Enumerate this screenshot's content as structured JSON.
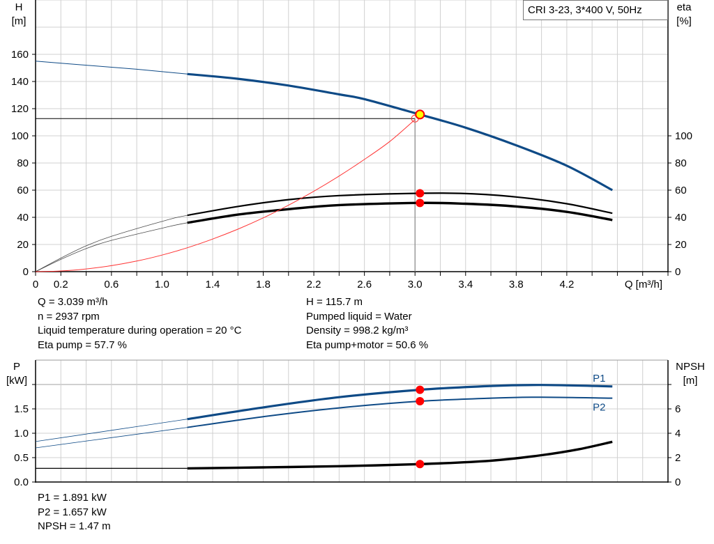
{
  "colors": {
    "head": "#0e4a86",
    "eta": "#000000",
    "system": "#ff3333",
    "point": "#ff0000",
    "duty_fill": "#ffff00",
    "grid": "#d0d0d0",
    "power": "#0e4a86",
    "npsh": "#000000"
  },
  "chart_data": [
    {
      "type": "line",
      "legend_box": "CRI 3-23, 3*400 V, 50Hz",
      "xlabel": "Q [m³/h]",
      "ylabel_left": [
        "H",
        "[m]"
      ],
      "ylabel_right": [
        "eta",
        "[%]"
      ],
      "xlim": [
        0,
        5.0
      ],
      "ylim_left": [
        0,
        200
      ],
      "ylim_right": [
        0,
        200
      ],
      "grid": true,
      "x_ticks": [
        0,
        0.2,
        0.4,
        0.6,
        0.8,
        1.0,
        1.2,
        1.4,
        1.6,
        1.8,
        2.0,
        2.2,
        2.4,
        2.6,
        2.8,
        3.0,
        3.2,
        3.4,
        3.6,
        3.8,
        4.0,
        4.2,
        4.4,
        4.6,
        4.8,
        5.0
      ],
      "x_tick_labels": [
        "0",
        "0.2",
        "0.6",
        "1.0",
        "1.4",
        "1.8",
        "2.2",
        "2.6",
        "3.0",
        "3.4",
        "3.8",
        "4.2"
      ],
      "x_tick_label_values": [
        0,
        0.2,
        0.6,
        1.0,
        1.4,
        1.8,
        2.2,
        2.6,
        3.0,
        3.4,
        3.8,
        4.2
      ],
      "y_left_ticks": [
        "0",
        "20",
        "40",
        "60",
        "80",
        "100",
        "120",
        "140",
        "160"
      ],
      "y_right_ticks": [
        "0",
        "20",
        "40",
        "60",
        "80",
        "100"
      ],
      "series": [
        {
          "key": "H",
          "axis": "left",
          "thick_from": 1.2,
          "x": [
            0,
            0.4,
            0.8,
            1.2,
            1.6,
            2.0,
            2.4,
            2.6,
            3.039,
            3.4,
            3.8,
            4.2,
            4.56
          ],
          "y": [
            155,
            152,
            149,
            145.5,
            142,
            137,
            130.5,
            127,
            115.7,
            106,
            93,
            78,
            60
          ]
        },
        {
          "key": "eta_pump",
          "axis": "right",
          "thick_from": 1.2,
          "x": [
            0,
            0.2,
            0.4,
            0.6,
            1.0,
            1.2,
            1.6,
            2.0,
            2.4,
            3.039,
            3.4,
            3.8,
            4.2,
            4.56
          ],
          "y": [
            0,
            10,
            19,
            26,
            37,
            41.5,
            48,
            53,
            56,
            57.7,
            57.5,
            55,
            50,
            43
          ]
        },
        {
          "key": "eta_pump_motor",
          "axis": "right",
          "thick_from": 1.2,
          "x": [
            0,
            0.2,
            0.4,
            0.6,
            1.0,
            1.2,
            1.6,
            2.0,
            2.4,
            3.039,
            3.4,
            3.8,
            4.2,
            4.56
          ],
          "y": [
            0,
            9,
            17,
            23,
            32,
            36,
            42,
            46,
            49,
            50.6,
            50,
            48,
            44,
            38
          ]
        },
        {
          "key": "system_curve",
          "axis": "left",
          "x": [
            0,
            0.2,
            0.4,
            0.6,
            0.8,
            1.0,
            1.2,
            1.4,
            1.6,
            1.8,
            2.0,
            2.2,
            2.4,
            2.6,
            2.8,
            3.0
          ],
          "y": [
            0,
            0.5,
            2,
            4.4,
            7.8,
            12.2,
            17.6,
            24,
            31.3,
            39.6,
            48.9,
            59.2,
            70.4,
            82.6,
            95.8,
            112
          ]
        }
      ],
      "duty_point": {
        "Q": 3.039,
        "H": 115.7
      },
      "system_point": {
        "Q": 3.0,
        "H": 112.7
      },
      "eta_points": [
        {
          "Q": 3.039,
          "eta": 57.7
        },
        {
          "Q": 3.039,
          "eta": 50.6
        }
      ]
    },
    {
      "type": "line",
      "ylabel_left": [
        "P",
        "[kW]"
      ],
      "ylabel_right": [
        "NPSH",
        "[m]"
      ],
      "xlim": [
        0,
        5.0
      ],
      "ylim_left": [
        0,
        2.5
      ],
      "ylim_right": [
        0,
        10
      ],
      "grid": true,
      "y_left_ticks": [
        "0.0",
        "0.5",
        "1.0",
        "1.5"
      ],
      "y_right_ticks": [
        "0",
        "2",
        "4",
        "6"
      ],
      "series": [
        {
          "key": "P1",
          "name": "P1",
          "axis": "left",
          "thick_from": 1.2,
          "x": [
            0,
            0.6,
            1.2,
            1.8,
            2.4,
            3.039,
            3.6,
            4.0,
            4.56
          ],
          "y": [
            0.83,
            1.06,
            1.29,
            1.53,
            1.74,
            1.891,
            1.97,
            1.99,
            1.96
          ]
        },
        {
          "key": "P2",
          "name": "P2",
          "axis": "left",
          "thick_from": 1.2,
          "x": [
            0,
            0.6,
            1.2,
            1.8,
            2.4,
            3.039,
            3.6,
            4.0,
            4.56
          ],
          "y": [
            0.7,
            0.91,
            1.12,
            1.34,
            1.52,
            1.657,
            1.72,
            1.74,
            1.72
          ]
        },
        {
          "key": "NPSH",
          "axis": "right",
          "thick_from": 1.2,
          "x": [
            1.2,
            1.8,
            2.4,
            3.039,
            3.6,
            4.0,
            4.3,
            4.56
          ],
          "y": [
            1.12,
            1.2,
            1.3,
            1.47,
            1.75,
            2.2,
            2.7,
            3.3
          ]
        }
      ],
      "npsh_required_line": {
        "Q_from": 0,
        "Q_to": 1.2,
        "NPSH": 1.12
      },
      "points": [
        {
          "key": "P1",
          "Q": 3.039,
          "value": 1.891
        },
        {
          "key": "P2",
          "Q": 3.039,
          "value": 1.657
        },
        {
          "key": "NPSH",
          "Q": 3.039,
          "value": 1.47
        }
      ]
    }
  ],
  "info_left": [
    "Q = 3.039 m³/h",
    "n = 2937 rpm",
    "Liquid temperature during operation = 20 °C",
    "Eta pump = 57.7 %"
  ],
  "info_right": [
    "H = 115.7 m",
    "Pumped liquid = Water",
    "Density = 998.2 kg/m³",
    "Eta pump+motor = 50.6 %"
  ],
  "info_bottom": [
    "P1 = 1.891 kW",
    "P2 = 1.657 kW",
    "NPSH = 1.47 m"
  ]
}
